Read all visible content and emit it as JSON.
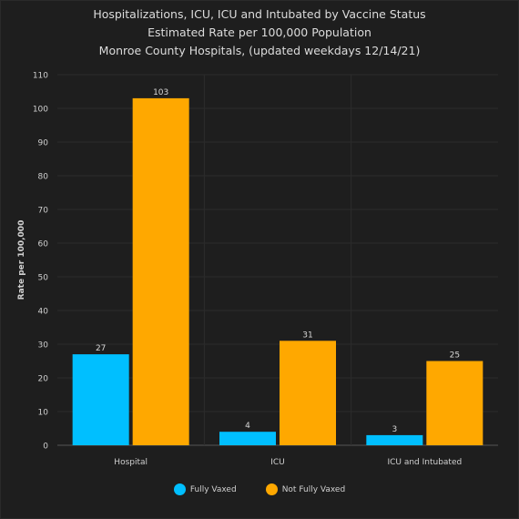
{
  "title_lines": [
    "Hospitalizations, ICU, ICU and Intubated by Vaccine Status",
    "Estimated Rate per 100,000 Population",
    "Monroe County Hospitals, (updated weekdays 12/14/21)"
  ],
  "colors": {
    "fully_vaxed": "#00bfff",
    "not_fully_vaxed": "#ffa800",
    "background": "#1e1e1e",
    "grid": "#2c2c2c",
    "text": "#d8d8d8"
  },
  "legend": {
    "fully_vaxed": "Fully Vaxed",
    "not_fully_vaxed": "Not Fully Vaxed"
  },
  "chart_data": {
    "type": "bar",
    "title": "Hospitalizations, ICU, ICU and Intubated by Vaccine Status",
    "subtitle": "Estimated Rate per 100,000 Population — Monroe County Hospitals, (updated weekdays 12/14/21)",
    "xlabel": "",
    "ylabel": "Rate per 100,000",
    "ylim": [
      0,
      110
    ],
    "yticks": [
      0,
      10,
      20,
      30,
      40,
      50,
      60,
      70,
      80,
      90,
      100,
      110
    ],
    "grid": true,
    "legend_position": "bottom",
    "categories": [
      "Hospital",
      "ICU",
      "ICU and Intubated"
    ],
    "series": [
      {
        "name": "Fully Vaxed",
        "values": [
          27,
          4,
          3
        ]
      },
      {
        "name": "Not Fully Vaxed",
        "values": [
          103,
          31,
          25
        ]
      }
    ]
  }
}
